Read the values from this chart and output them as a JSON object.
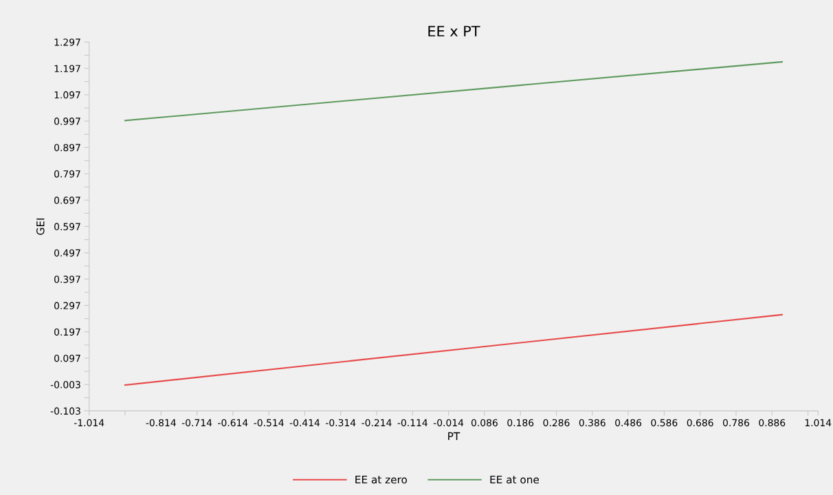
{
  "chart_data": {
    "type": "line",
    "title": "EE x PT",
    "xlabel": "PT",
    "ylabel": "GEI",
    "x": [
      -0.914,
      0.914
    ],
    "series": [
      {
        "name": "EE at zero",
        "color": "#e84a4a",
        "values": [
          -0.005,
          0.262
        ]
      },
      {
        "name": "EE at one",
        "color": "#5e9a5e",
        "values": [
          0.999,
          1.222
        ]
      }
    ],
    "xlim": [
      -1.014,
      1.014
    ],
    "xticks": [
      -1.014,
      {
        "value": -0.914,
        "label": null
      },
      -0.814,
      -0.714,
      -0.614,
      -0.514,
      -0.414,
      -0.314,
      -0.214,
      -0.114,
      -0.014,
      0.086,
      0.186,
      0.286,
      0.386,
      0.486,
      0.586,
      0.686,
      0.786,
      0.886,
      {
        "value": 0.986,
        "label": null
      },
      1.014
    ],
    "ylim": [
      -0.103,
      1.297
    ],
    "yticks": [
      -0.103,
      {
        "value": -0.053,
        "label": null
      },
      -0.003,
      {
        "value": 0.047,
        "label": null
      },
      0.097,
      {
        "value": 0.147,
        "label": null
      },
      0.197,
      {
        "value": 0.247,
        "label": null
      },
      0.297,
      {
        "value": 0.347,
        "label": null
      },
      0.397,
      {
        "value": 0.447,
        "label": null
      },
      0.497,
      {
        "value": 0.547,
        "label": null
      },
      0.597,
      {
        "value": 0.647,
        "label": null
      },
      0.697,
      {
        "value": 0.747,
        "label": null
      },
      0.797,
      {
        "value": 0.847,
        "label": null
      },
      0.897,
      {
        "value": 0.947,
        "label": null
      },
      0.997,
      {
        "value": 1.047,
        "label": null
      },
      1.097,
      {
        "value": 1.147,
        "label": null
      },
      1.197,
      {
        "value": 1.247,
        "label": null
      },
      1.297
    ],
    "grid": false,
    "legend": "bottom",
    "marker": "none",
    "line_style": "solid"
  }
}
